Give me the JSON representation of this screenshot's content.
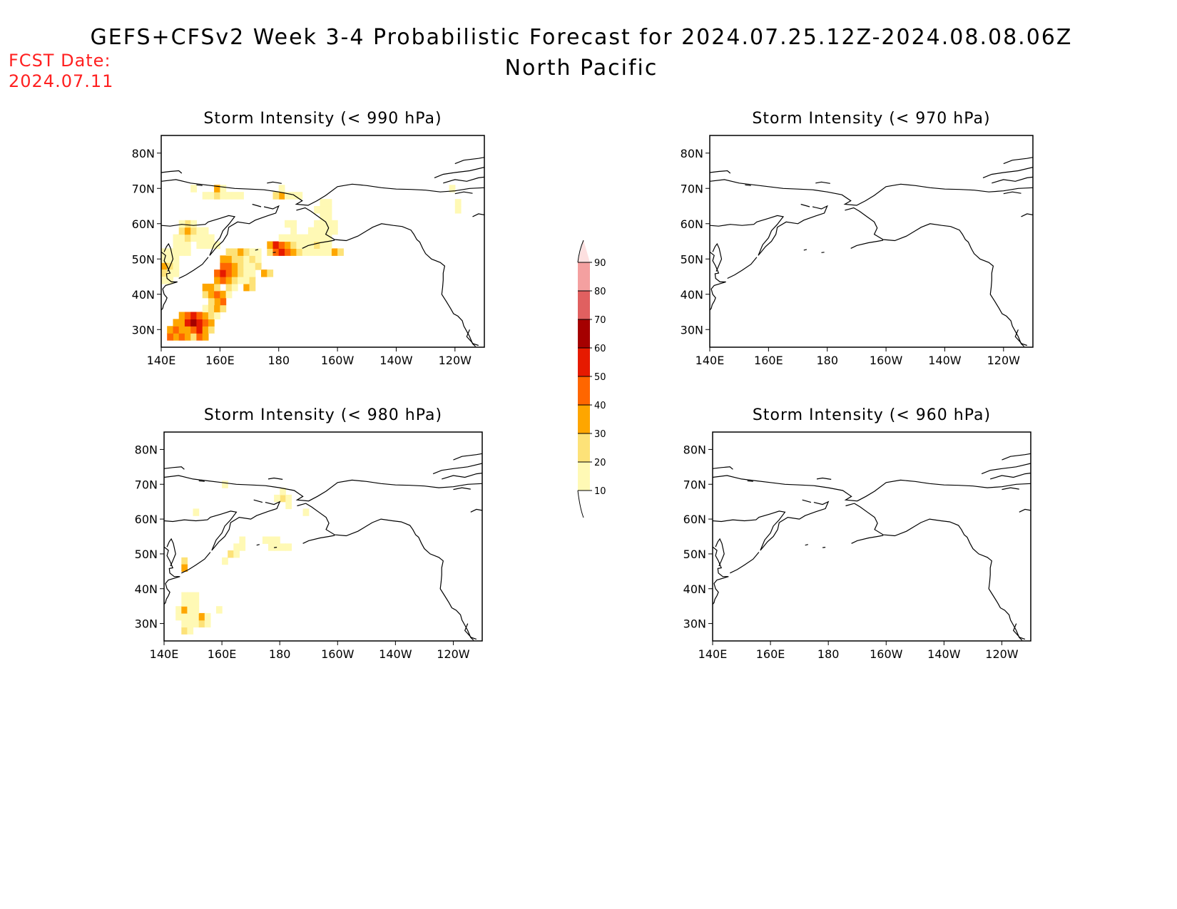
{
  "title": "GEFS+CFSv2 Week 3-4 Probabilistic Forecast for 2024.07.25.12Z-2024.08.08.06Z",
  "subtitle": "North Pacific",
  "fcst_label": "FCST Date:",
  "fcst_date": "2024.07.11",
  "colors": {
    "levels": [
      "#fff9b5",
      "#fde278",
      "#fea600",
      "#ff6600",
      "#e61a00",
      "#a50000",
      "#e06060",
      "#f4a0a0",
      "#fde0e0"
    ],
    "coast": "#000000",
    "fcst_text": "#ff2020"
  },
  "axes": {
    "lon_ticks": [
      "140E",
      "160E",
      "180",
      "160W",
      "140W",
      "120W"
    ],
    "lat_ticks": [
      "80N",
      "70N",
      "60N",
      "50N",
      "40N",
      "30N"
    ]
  },
  "colorbar": {
    "labels": [
      "10",
      "20",
      "30",
      "40",
      "50",
      "60",
      "70",
      "80",
      "90"
    ]
  },
  "panels": [
    {
      "id": "p990",
      "title": "Storm Intensity (< 990 hPa)",
      "cells": [
        [
          145,
          28,
          3
        ],
        [
          143,
          28,
          4
        ],
        [
          147,
          28,
          4
        ],
        [
          149,
          28,
          3
        ],
        [
          151,
          28,
          2
        ],
        [
          153,
          28,
          4
        ],
        [
          155,
          28,
          3
        ],
        [
          143,
          30,
          3
        ],
        [
          145,
          30,
          4
        ],
        [
          147,
          30,
          3
        ],
        [
          149,
          30,
          3
        ],
        [
          151,
          30,
          4
        ],
        [
          153,
          30,
          5
        ],
        [
          155,
          30,
          3
        ],
        [
          157,
          30,
          2
        ],
        [
          145,
          32,
          3
        ],
        [
          147,
          32,
          3
        ],
        [
          149,
          32,
          5
        ],
        [
          151,
          32,
          6
        ],
        [
          153,
          32,
          5
        ],
        [
          155,
          32,
          4
        ],
        [
          157,
          32,
          3
        ],
        [
          147,
          34,
          3
        ],
        [
          149,
          34,
          4
        ],
        [
          151,
          34,
          5
        ],
        [
          153,
          34,
          4
        ],
        [
          155,
          34,
          3
        ],
        [
          157,
          34,
          2
        ],
        [
          159,
          34,
          1
        ],
        [
          155,
          36,
          1
        ],
        [
          157,
          36,
          2
        ],
        [
          159,
          36,
          3
        ],
        [
          161,
          36,
          2
        ],
        [
          161,
          38,
          4
        ],
        [
          159,
          38,
          3
        ],
        [
          157,
          38,
          2
        ],
        [
          155,
          40,
          2
        ],
        [
          157,
          40,
          3
        ],
        [
          159,
          40,
          4
        ],
        [
          161,
          40,
          3
        ],
        [
          163,
          40,
          1
        ],
        [
          155,
          42,
          3
        ],
        [
          157,
          42,
          3
        ],
        [
          159,
          42,
          2
        ],
        [
          163,
          42,
          2
        ],
        [
          165,
          42,
          1
        ],
        [
          169,
          42,
          3
        ],
        [
          171,
          42,
          2
        ],
        [
          159,
          44,
          3
        ],
        [
          161,
          44,
          4
        ],
        [
          163,
          44,
          3
        ],
        [
          165,
          44,
          2
        ],
        [
          167,
          44,
          1
        ],
        [
          169,
          44,
          1
        ],
        [
          171,
          44,
          2
        ],
        [
          159,
          46,
          4
        ],
        [
          161,
          46,
          5
        ],
        [
          163,
          46,
          4
        ],
        [
          165,
          46,
          3
        ],
        [
          167,
          46,
          2
        ],
        [
          169,
          46,
          1
        ],
        [
          171,
          46,
          1
        ],
        [
          175,
          46,
          3
        ],
        [
          177,
          46,
          2
        ],
        [
          161,
          48,
          4
        ],
        [
          163,
          48,
          4
        ],
        [
          165,
          48,
          3
        ],
        [
          167,
          48,
          2
        ],
        [
          169,
          48,
          1
        ],
        [
          171,
          48,
          1
        ],
        [
          173,
          48,
          2
        ],
        [
          161,
          50,
          3
        ],
        [
          163,
          50,
          3
        ],
        [
          165,
          50,
          2
        ],
        [
          167,
          50,
          2
        ],
        [
          169,
          50,
          1
        ],
        [
          171,
          50,
          2
        ],
        [
          173,
          50,
          1
        ],
        [
          163,
          52,
          2
        ],
        [
          165,
          52,
          2
        ],
        [
          167,
          52,
          3
        ],
        [
          169,
          52,
          2
        ],
        [
          171,
          52,
          1
        ],
        [
          173,
          52,
          1
        ],
        [
          177,
          52,
          2
        ],
        [
          179,
          52,
          4
        ],
        [
          181,
          52,
          5
        ],
        [
          183,
          52,
          4
        ],
        [
          185,
          52,
          3
        ],
        [
          187,
          52,
          2
        ],
        [
          189,
          52,
          1
        ],
        [
          191,
          52,
          1
        ],
        [
          193,
          52,
          1
        ],
        [
          195,
          52,
          1
        ],
        [
          197,
          52,
          1
        ],
        [
          199,
          52,
          3
        ],
        [
          201,
          52,
          2
        ],
        [
          177,
          54,
          3
        ],
        [
          179,
          54,
          5
        ],
        [
          181,
          54,
          4
        ],
        [
          183,
          54,
          3
        ],
        [
          185,
          54,
          2
        ],
        [
          187,
          54,
          1
        ],
        [
          189,
          54,
          1
        ],
        [
          191,
          54,
          1
        ],
        [
          193,
          54,
          2
        ],
        [
          195,
          54,
          1
        ],
        [
          197,
          54,
          1
        ],
        [
          141,
          48,
          3
        ],
        [
          143,
          48,
          2
        ],
        [
          141,
          46,
          2
        ],
        [
          141,
          44,
          1
        ],
        [
          143,
          44,
          1
        ],
        [
          143,
          46,
          1
        ],
        [
          145,
          46,
          1
        ],
        [
          145,
          48,
          1
        ],
        [
          147,
          52,
          1
        ],
        [
          149,
          52,
          1
        ],
        [
          141,
          50,
          1
        ],
        [
          143,
          50,
          1
        ],
        [
          141,
          52,
          1
        ],
        [
          143,
          52,
          1
        ],
        [
          145,
          52,
          1
        ],
        [
          145,
          50,
          1
        ],
        [
          145,
          54,
          1
        ],
        [
          147,
          54,
          1
        ],
        [
          149,
          54,
          1
        ],
        [
          153,
          54,
          1
        ],
        [
          155,
          54,
          1
        ],
        [
          157,
          54,
          1
        ],
        [
          159,
          54,
          1
        ],
        [
          145,
          56,
          1
        ],
        [
          147,
          56,
          1
        ],
        [
          149,
          56,
          2
        ],
        [
          151,
          56,
          1
        ],
        [
          153,
          56,
          1
        ],
        [
          155,
          56,
          1
        ],
        [
          157,
          56,
          1
        ],
        [
          147,
          58,
          2
        ],
        [
          149,
          58,
          3
        ],
        [
          151,
          58,
          2
        ],
        [
          153,
          58,
          1
        ],
        [
          155,
          58,
          1
        ],
        [
          149,
          60,
          2
        ],
        [
          151,
          60,
          1
        ],
        [
          147,
          60,
          1
        ],
        [
          181,
          56,
          1
        ],
        [
          183,
          56,
          1
        ],
        [
          185,
          56,
          1
        ],
        [
          187,
          56,
          1
        ],
        [
          189,
          56,
          1
        ],
        [
          191,
          56,
          1
        ],
        [
          193,
          56,
          1
        ],
        [
          195,
          56,
          1
        ],
        [
          197,
          56,
          1
        ],
        [
          191,
          58,
          1
        ],
        [
          193,
          58,
          1
        ],
        [
          195,
          58,
          1
        ],
        [
          197,
          58,
          1
        ],
        [
          199,
          58,
          1
        ],
        [
          185,
          58,
          1
        ],
        [
          193,
          60,
          1
        ],
        [
          195,
          60,
          1
        ],
        [
          197,
          60,
          1
        ],
        [
          199,
          60,
          1
        ],
        [
          183,
          60,
          1
        ],
        [
          185,
          60,
          1
        ],
        [
          195,
          62,
          1
        ],
        [
          197,
          62,
          1
        ],
        [
          155,
          68,
          1
        ],
        [
          157,
          68,
          1
        ],
        [
          159,
          68,
          2
        ],
        [
          161,
          68,
          1
        ],
        [
          163,
          68,
          1
        ],
        [
          165,
          68,
          1
        ],
        [
          167,
          68,
          1
        ],
        [
          159,
          70,
          3
        ],
        [
          161,
          70,
          1
        ],
        [
          151,
          70,
          1
        ],
        [
          181,
          68,
          3
        ],
        [
          179,
          68,
          2
        ],
        [
          183,
          68,
          1
        ],
        [
          185,
          68,
          1
        ],
        [
          187,
          68,
          1
        ],
        [
          181,
          70,
          1
        ],
        [
          193,
          64,
          1
        ],
        [
          195,
          64,
          1
        ],
        [
          197,
          64,
          1
        ],
        [
          195,
          66,
          1
        ],
        [
          197,
          66,
          1
        ],
        [
          241,
          64,
          1
        ],
        [
          241,
          66,
          1
        ],
        [
          239,
          70,
          1
        ]
      ]
    },
    {
      "id": "p970",
      "title": "Storm Intensity (< 970 hPa)",
      "cells": []
    },
    {
      "id": "p980",
      "title": "Storm Intensity (< 980 hPa)",
      "cells": [
        [
          147,
          28,
          2
        ],
        [
          149,
          28,
          1
        ],
        [
          149,
          30,
          1
        ],
        [
          147,
          30,
          1
        ],
        [
          151,
          30,
          1
        ],
        [
          153,
          30,
          2
        ],
        [
          155,
          30,
          1
        ],
        [
          145,
          32,
          1
        ],
        [
          147,
          32,
          1
        ],
        [
          149,
          32,
          1
        ],
        [
          151,
          32,
          1
        ],
        [
          153,
          32,
          3
        ],
        [
          155,
          32,
          1
        ],
        [
          145,
          34,
          1
        ],
        [
          147,
          34,
          3
        ],
        [
          149,
          34,
          1
        ],
        [
          151,
          34,
          1
        ],
        [
          147,
          36,
          1
        ],
        [
          149,
          36,
          1
        ],
        [
          151,
          36,
          1
        ],
        [
          147,
          38,
          1
        ],
        [
          149,
          38,
          1
        ],
        [
          151,
          38,
          1
        ],
        [
          147,
          48,
          2
        ],
        [
          147,
          46,
          3
        ],
        [
          159,
          34,
          1
        ],
        [
          161,
          48,
          1
        ],
        [
          163,
          50,
          2
        ],
        [
          165,
          50,
          1
        ],
        [
          165,
          52,
          1
        ],
        [
          167,
          52,
          1
        ],
        [
          167,
          54,
          1
        ],
        [
          175,
          54,
          1
        ],
        [
          177,
          52,
          1
        ],
        [
          179,
          52,
          1
        ],
        [
          177,
          54,
          1
        ],
        [
          181,
          52,
          1
        ],
        [
          179,
          54,
          1
        ],
        [
          183,
          52,
          1
        ],
        [
          181,
          66,
          2
        ],
        [
          181,
          68,
          1
        ],
        [
          183,
          66,
          1
        ],
        [
          179,
          66,
          1
        ],
        [
          183,
          64,
          1
        ],
        [
          189,
          62,
          1
        ],
        [
          161,
          70,
          1
        ],
        [
          151,
          62,
          1
        ]
      ]
    },
    {
      "id": "p960",
      "title": "Storm Intensity (< 960 hPa)",
      "cells": []
    }
  ]
}
